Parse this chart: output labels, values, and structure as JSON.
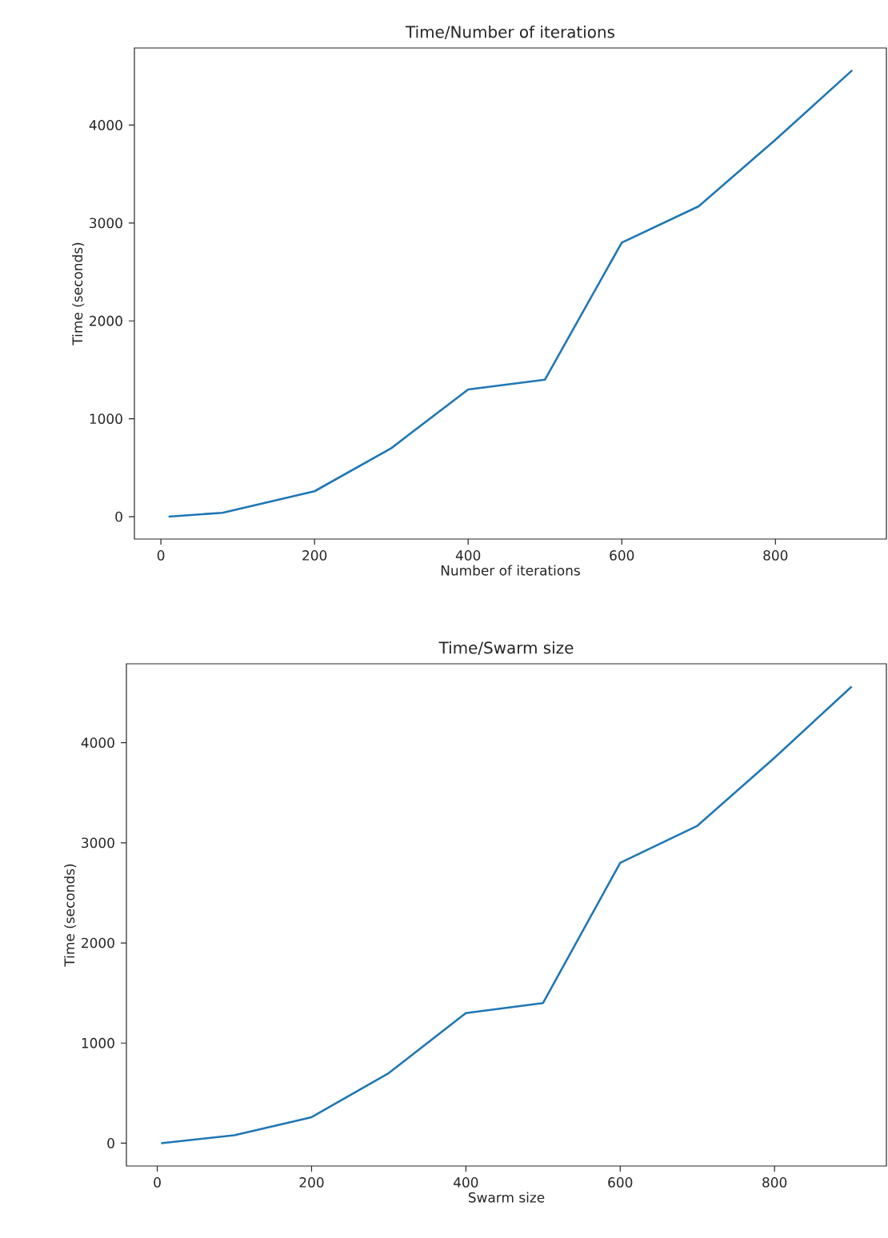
{
  "chart_data": [
    {
      "type": "line",
      "title": "Time/Number of iterations",
      "xlabel": "Number of iterations",
      "ylabel": "Time (seconds)",
      "x": [
        10,
        80,
        200,
        300,
        400,
        500,
        600,
        700,
        800,
        900
      ],
      "series": [
        {
          "color": "#1f77b4",
          "values": [
            0,
            40,
            260,
            700,
            1300,
            1400,
            2800,
            3170,
            3850,
            4560
          ]
        }
      ],
      "xlim": [
        -34.5,
        944.5
      ],
      "ylim": [
        -228,
        4788
      ],
      "xticks": [
        0,
        200,
        400,
        600,
        800
      ],
      "yticks": [
        0,
        1000,
        2000,
        3000,
        4000
      ]
    },
    {
      "type": "line",
      "title": "Time/Swarm size",
      "xlabel": "Swarm size",
      "ylabel": "Time (seconds)",
      "x": [
        5,
        100,
        200,
        300,
        400,
        500,
        600,
        700,
        800,
        900
      ],
      "series": [
        {
          "color": "#1f77b4",
          "values": [
            0,
            80,
            260,
            700,
            1300,
            1400,
            2800,
            3170,
            3850,
            4560
          ]
        }
      ],
      "xlim": [
        -40,
        945
      ],
      "ylim": [
        -228,
        4788
      ],
      "xticks": [
        0,
        200,
        400,
        600,
        800
      ],
      "yticks": [
        0,
        1000,
        2000,
        3000,
        4000
      ]
    }
  ]
}
